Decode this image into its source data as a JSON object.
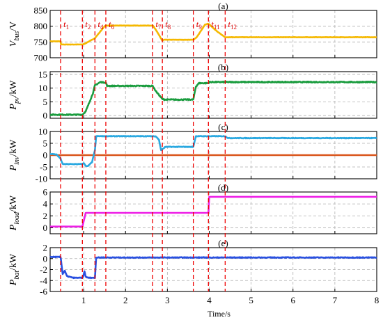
{
  "chart_data": {
    "type": "line",
    "xlabel": "Time/s",
    "xlim": [
      0.2,
      8
    ],
    "xticks": [
      1,
      2,
      3,
      4,
      5,
      6,
      7,
      8
    ],
    "grid": true,
    "event_markers": [
      {
        "label": "t",
        "sub": "1",
        "x": 0.45
      },
      {
        "label": "t",
        "sub": "2",
        "x": 0.97
      },
      {
        "label": "t",
        "sub": "4",
        "x": 1.27
      },
      {
        "label": "t",
        "sub": "6",
        "x": 1.53
      },
      {
        "label": "t",
        "sub": "7",
        "x": 2.65
      },
      {
        "label": "t",
        "sub": "8",
        "x": 2.88
      },
      {
        "label": "t",
        "sub": "9",
        "x": 3.62
      },
      {
        "label": "t",
        "sub": "11",
        "x": 3.98
      },
      {
        "label": "t",
        "sub": "12",
        "x": 4.38
      }
    ],
    "panels": [
      {
        "tag": "(a)",
        "ylabel_main": "V",
        "ylabel_sub": "bus",
        "ylabel_unit": "/V",
        "ylim": [
          700,
          850
        ],
        "yticks": [
          700,
          750,
          800,
          850
        ],
        "ytick_labels": [
          "700",
          "750",
          "800",
          "850"
        ],
        "series": [
          {
            "color": "#f5b800",
            "noise": 1,
            "x": [
              0.2,
              0.45,
              0.46,
              0.97,
              1.02,
              1.27,
              1.5,
              1.53,
              2.65,
              2.72,
              2.88,
              2.92,
              3.62,
              3.7,
              3.9,
              3.98,
              4.2,
              4.38,
              8.0
            ],
            "y": [
              752,
              752,
              742,
              742,
              744,
              762,
              800,
              802,
              802,
              790,
              754,
              757,
              757,
              765,
              805,
              808,
              782,
              765,
              765
            ]
          }
        ]
      },
      {
        "tag": "(b)",
        "ylabel_main": "P",
        "ylabel_sub": "pv",
        "ylabel_unit": "/kW",
        "ylim": [
          -1,
          16
        ],
        "yticks": [
          0,
          5,
          10,
          15
        ],
        "ytick_labels": [
          "0",
          "5",
          "10",
          "15"
        ],
        "series": [
          {
            "color": "#1a9c3e",
            "noise": 0.35,
            "x": [
              0.2,
              0.97,
              1.05,
              1.22,
              1.27,
              1.4,
              1.53,
              1.56,
              2.65,
              2.72,
              2.88,
              2.95,
              3.62,
              3.68,
              3.75,
              3.98,
              4.0,
              8.0
            ],
            "y": [
              0.3,
              0.3,
              1.5,
              8.0,
              11.0,
              12.2,
              12.0,
              10.8,
              10.8,
              9.0,
              6.0,
              5.8,
              5.8,
              10.5,
              11.8,
              11.8,
              12.2,
              12.2
            ]
          }
        ]
      },
      {
        "tag": "(c)",
        "ylabel_main": "P",
        "ylabel_sub": "inv",
        "ylabel_unit": "/kW",
        "ylim": [
          -10,
          10
        ],
        "yticks": [
          -10,
          -5,
          0,
          5,
          10
        ],
        "ytick_labels": [
          "-10",
          "-5",
          "0",
          "5",
          "10"
        ],
        "series": [
          {
            "color": "#d9541a",
            "noise": 0,
            "x": [
              0.2,
              8.0
            ],
            "y": [
              0,
              0
            ]
          },
          {
            "color": "#29a8e0",
            "noise": 0.25,
            "x": [
              0.2,
              0.35,
              0.45,
              0.5,
              0.97,
              1.0,
              1.05,
              1.1,
              1.2,
              1.27,
              1.3,
              1.53,
              2.65,
              2.72,
              2.8,
              2.85,
              2.95,
              3.0,
              3.62,
              3.68,
              3.98,
              4.38,
              4.45,
              8.0
            ],
            "y": [
              0.5,
              0.3,
              -1.5,
              -3.8,
              -3.8,
              -3.3,
              -4.5,
              -4.7,
              -3.0,
              2.0,
              8.0,
              8.0,
              8.0,
              8.0,
              6.5,
              2.0,
              3.5,
              3.5,
              3.5,
              8.0,
              8.0,
              8.0,
              7.2,
              7.2
            ]
          }
        ]
      },
      {
        "tag": "(d)",
        "ylabel_main": "P",
        "ylabel_sub": "load",
        "ylabel_unit": "/kW",
        "ylim": [
          -1,
          6
        ],
        "yticks": [
          0,
          2,
          4,
          6
        ],
        "ytick_labels": [
          "0",
          "2",
          "4",
          "6"
        ],
        "series": [
          {
            "color": "#ee1ee6",
            "noise": 0,
            "x": [
              0.2,
              0.97,
              1.05,
              3.98,
              4.0,
              8.0
            ],
            "y": [
              0.2,
              0.2,
              2.5,
              2.5,
              5.2,
              5.2
            ]
          }
        ]
      },
      {
        "tag": "(e)",
        "ylabel_main": "P",
        "ylabel_sub": "bat",
        "ylabel_unit": "/kW",
        "ylim": [
          -6,
          2
        ],
        "yticks": [
          -6,
          -4,
          -2,
          0,
          2
        ],
        "ytick_labels": [
          "-6",
          "-4",
          "-2",
          "0",
          "2"
        ],
        "series": [
          {
            "color": "#2950e0",
            "noise": 0.12,
            "x": [
              0.2,
              0.45,
              0.5,
              0.55,
              0.6,
              0.75,
              0.97,
              1.0,
              1.02,
              1.05,
              1.1,
              1.27,
              1.3,
              8.0
            ],
            "y": [
              0.3,
              0.3,
              -2.8,
              -2.2,
              -3.2,
              -3.5,
              -3.5,
              -3.0,
              -2.3,
              -3.3,
              -3.5,
              -3.5,
              0.2,
              0.2
            ]
          }
        ]
      }
    ]
  }
}
